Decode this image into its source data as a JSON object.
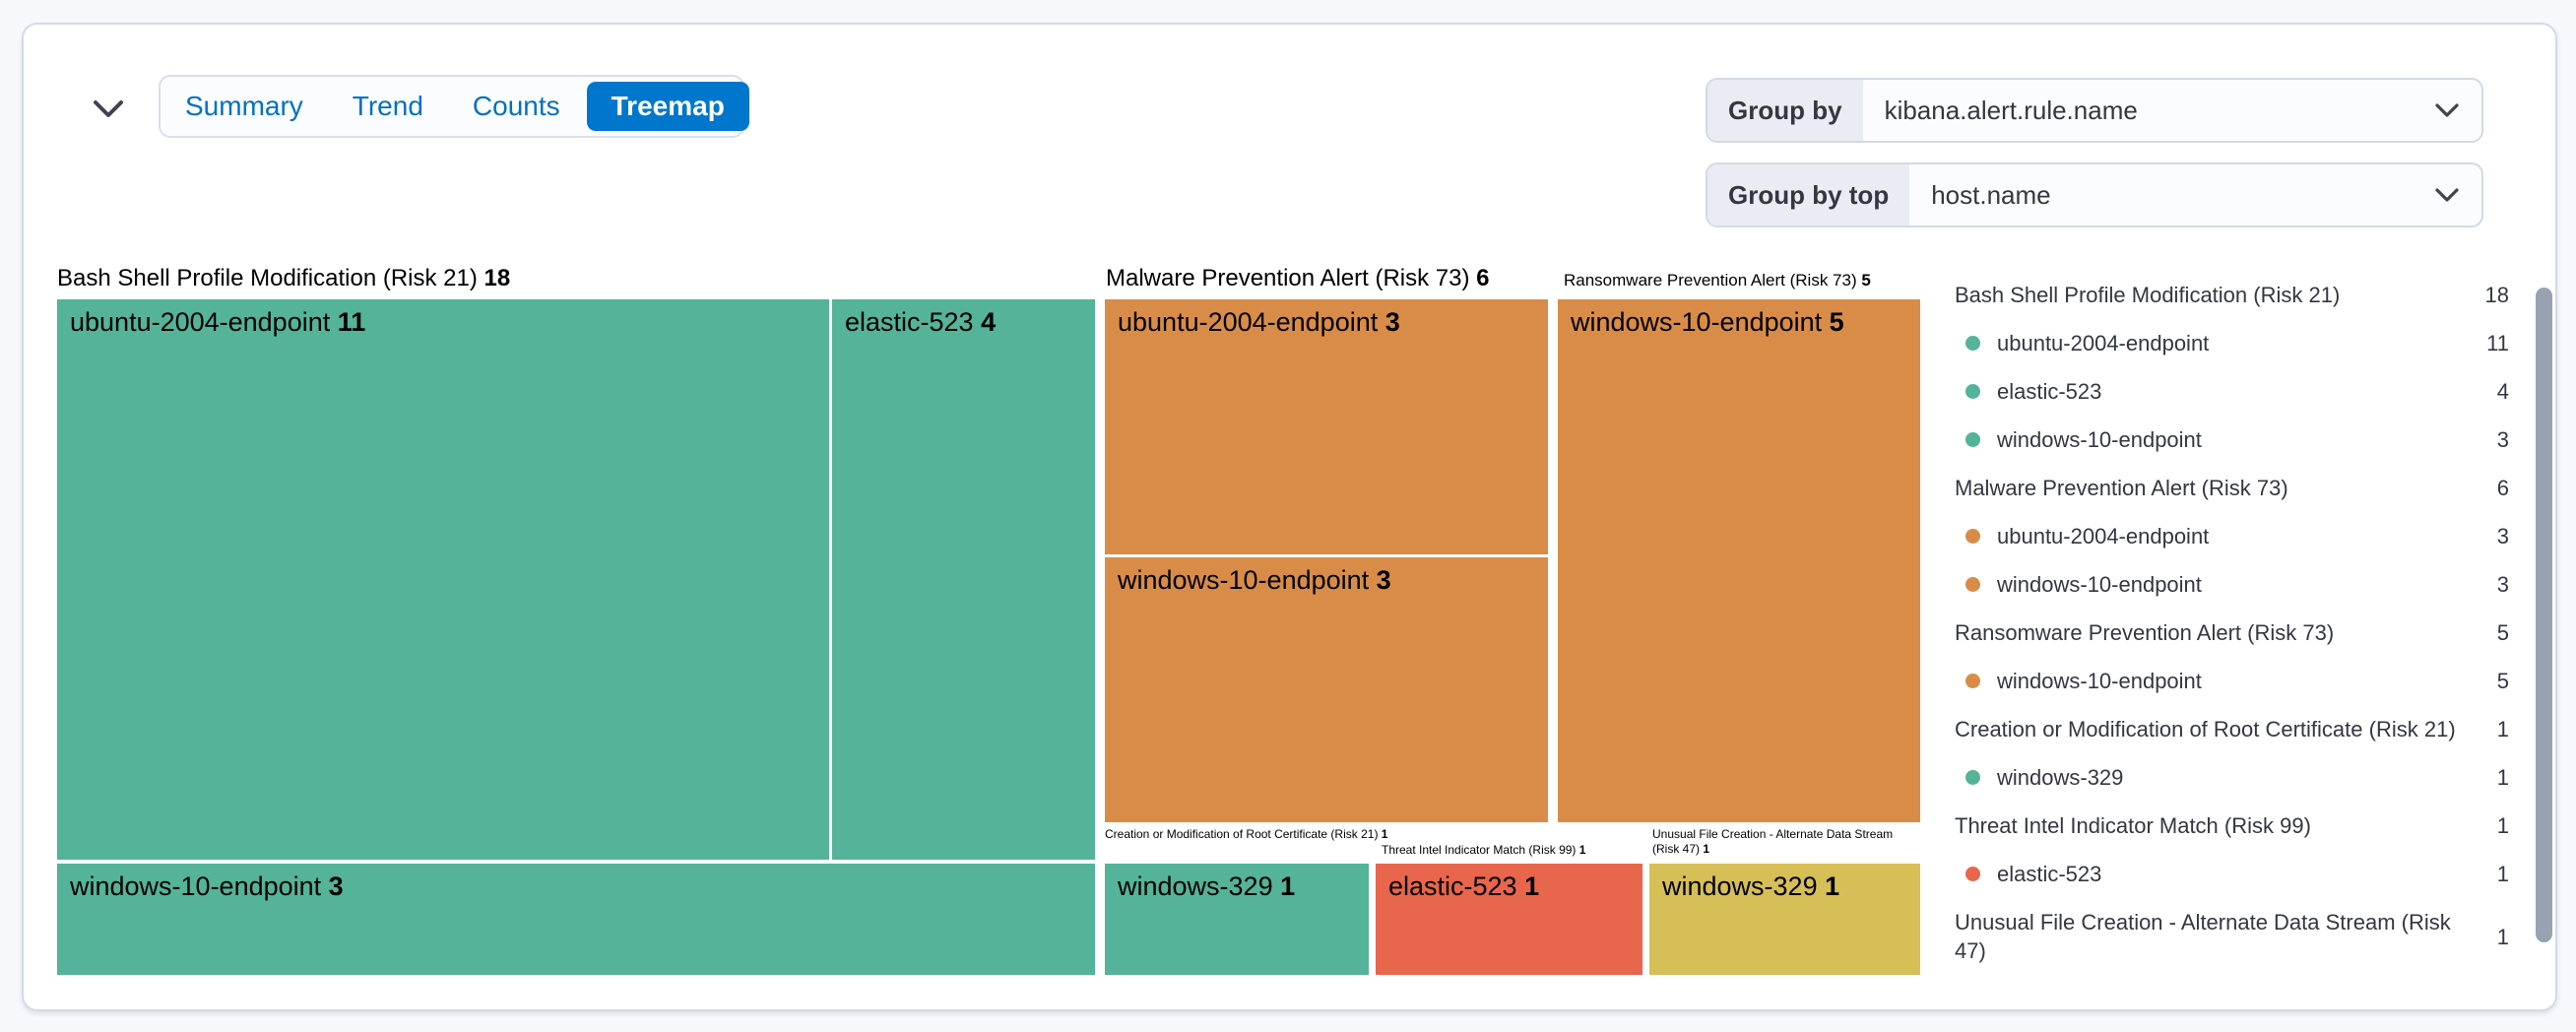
{
  "toolbar": {
    "collapse_icon": "chevron-down",
    "tabs": [
      {
        "label": "Summary",
        "selected": false
      },
      {
        "label": "Trend",
        "selected": false
      },
      {
        "label": "Counts",
        "selected": false
      },
      {
        "label": "Treemap",
        "selected": true
      }
    ],
    "controls": [
      {
        "name": "group-by",
        "label": "Group by",
        "value": "kibana.alert.rule.name"
      },
      {
        "name": "group-by-top",
        "label": "Group by top",
        "value": "host.name"
      }
    ]
  },
  "colors": {
    "green": "#54B399",
    "orange": "#D98C48",
    "red": "#E7664C",
    "yellow": "#D6BF57",
    "tab_selected_bg": "#0077CC",
    "tab_text": "#0071C2",
    "text": "#343741",
    "border": "#D3DAE6",
    "scrollbar": "#98A2B3"
  },
  "chart_data": {
    "type": "treemap",
    "group_by": "kibana.alert.rule.name",
    "group_by_top": "host.name",
    "legend_position": "right",
    "groups": [
      {
        "name": "Bash Shell Profile Modification (Risk 21)",
        "value": 18,
        "color": "green",
        "cells": [
          {
            "host": "ubuntu-2004-endpoint",
            "value": 11
          },
          {
            "host": "elastic-523",
            "value": 4
          },
          {
            "host": "windows-10-endpoint",
            "value": 3
          }
        ]
      },
      {
        "name": "Malware Prevention Alert (Risk 73)",
        "value": 6,
        "color": "orange",
        "cells": [
          {
            "host": "ubuntu-2004-endpoint",
            "value": 3
          },
          {
            "host": "windows-10-endpoint",
            "value": 3
          }
        ]
      },
      {
        "name": "Ransomware Prevention Alert (Risk 73)",
        "value": 5,
        "color": "orange",
        "cells": [
          {
            "host": "windows-10-endpoint",
            "value": 5
          }
        ]
      },
      {
        "name": "Creation or Modification of Root Certificate (Risk 21)",
        "value": 1,
        "color": "green",
        "cells": [
          {
            "host": "windows-329",
            "value": 1
          }
        ]
      },
      {
        "name": "Threat Intel Indicator Match (Risk 99)",
        "value": 1,
        "color": "red",
        "cells": [
          {
            "host": "elastic-523",
            "value": 1
          }
        ]
      },
      {
        "name": "Unusual File Creation - Alternate Data Stream (Risk 47)",
        "value": 1,
        "color": "yellow",
        "cells": [
          {
            "host": "windows-329",
            "value": 1
          }
        ]
      }
    ],
    "legend": [
      {
        "kind": "rule",
        "label": "Bash Shell Profile Modification (Risk 21)",
        "value": 18
      },
      {
        "kind": "host",
        "label": "ubuntu-2004-endpoint",
        "value": 11,
        "color": "green"
      },
      {
        "kind": "host",
        "label": "elastic-523",
        "value": 4,
        "color": "green"
      },
      {
        "kind": "host",
        "label": "windows-10-endpoint",
        "value": 3,
        "color": "green"
      },
      {
        "kind": "rule",
        "label": "Malware Prevention Alert (Risk 73)",
        "value": 6
      },
      {
        "kind": "host",
        "label": "ubuntu-2004-endpoint",
        "value": 3,
        "color": "orange"
      },
      {
        "kind": "host",
        "label": "windows-10-endpoint",
        "value": 3,
        "color": "orange"
      },
      {
        "kind": "rule",
        "label": "Ransomware Prevention Alert (Risk 73)",
        "value": 5
      },
      {
        "kind": "host",
        "label": "windows-10-endpoint",
        "value": 5,
        "color": "orange"
      },
      {
        "kind": "rule",
        "label": "Creation or Modification of Root Certificate (Risk 21)",
        "value": 1
      },
      {
        "kind": "host",
        "label": "windows-329",
        "value": 1,
        "color": "green"
      },
      {
        "kind": "rule",
        "label": "Threat Intel Indicator Match (Risk 99)",
        "value": 1
      },
      {
        "kind": "host",
        "label": "elastic-523",
        "value": 1,
        "color": "red"
      },
      {
        "kind": "rule",
        "label": "Unusual File Creation - Alternate Data Stream (Risk 47)",
        "value": 1
      }
    ]
  }
}
